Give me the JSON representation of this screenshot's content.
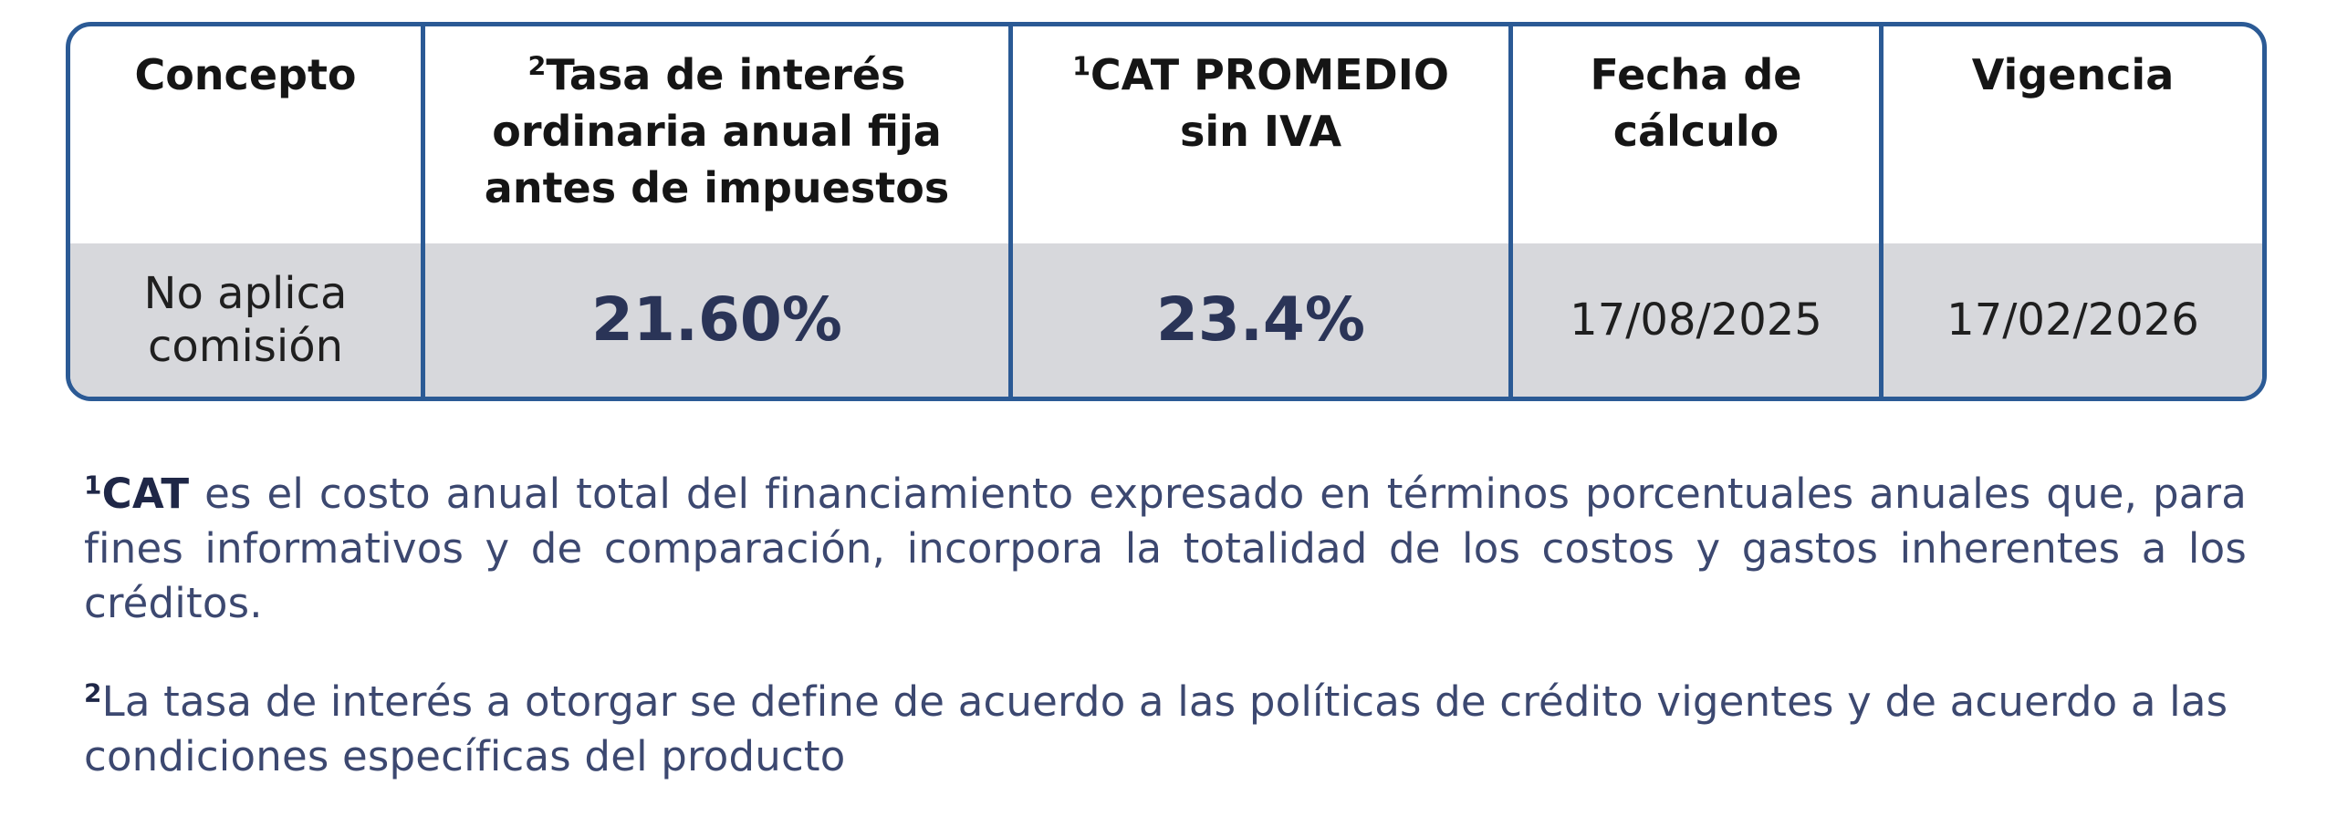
{
  "table": {
    "headers": [
      {
        "sup": "",
        "label": "Concepto"
      },
      {
        "sup": "2",
        "label": "Tasa de interés ordinaria anual fija antes de impuestos"
      },
      {
        "sup": "1",
        "label": "CAT PROMEDIO sin IVA"
      },
      {
        "sup": "",
        "label": "Fecha de cálculo"
      },
      {
        "sup": "",
        "label": "Vigencia"
      }
    ],
    "row": {
      "concepto": "No aplica comisión",
      "tasa": "21.60%",
      "cat": "23.4%",
      "fecha_calculo": "17/08/2025",
      "vigencia": "17/02/2026"
    }
  },
  "footnotes": {
    "one": {
      "sup": "1",
      "term": "CAT",
      "text": " es el costo anual total del financiamiento expresado en términos porcentuales anuales que, para fines informativos y de comparación, incorpora la totalidad de los costos y gastos inherentes a los créditos."
    },
    "two": {
      "sup": "2",
      "text": "La tasa de interés a otorgar se define de acuerdo a las políticas de crédito vigentes y de acuerdo a las condiciones específicas del producto"
    }
  },
  "colors": {
    "border": "#2b5a95",
    "row_background": "#d7d8dc",
    "value_text": "#2a3457",
    "footnote_text": "#3c4870"
  }
}
